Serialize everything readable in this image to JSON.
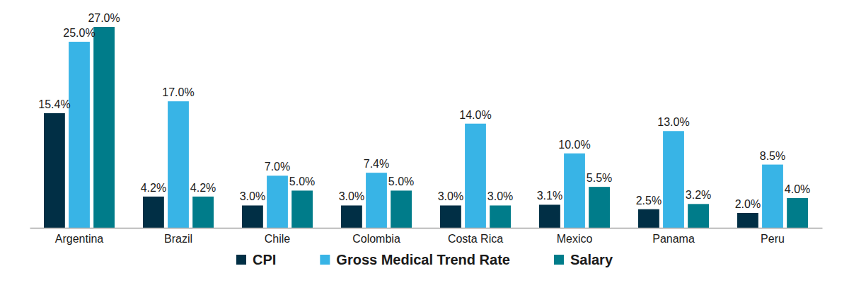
{
  "chart_data": {
    "type": "bar",
    "categories": [
      "Argentina",
      "Brazil",
      "Chile",
      "Colombia",
      "Costa Rica",
      "Mexico",
      "Panama",
      "Peru"
    ],
    "series": [
      {
        "name": "CPI",
        "color": "#012f45",
        "values": [
          15.4,
          4.2,
          3.0,
          3.0,
          3.0,
          3.1,
          2.5,
          2.0
        ],
        "value_labels": [
          "15.4%",
          "4.2%",
          "3.0%",
          "3.0%",
          "3.0%",
          "3.1%",
          "2.5%",
          "2.0%"
        ]
      },
      {
        "name": "Gross Medical Trend Rate",
        "color": "#38b4e6",
        "values": [
          25.0,
          17.0,
          7.0,
          7.4,
          14.0,
          10.0,
          13.0,
          8.5
        ],
        "value_labels": [
          "25.0%",
          "17.0%",
          "7.0%",
          "7.4%",
          "14.0%",
          "10.0%",
          "13.0%",
          "8.5%"
        ]
      },
      {
        "name": "Salary",
        "color": "#007c8a",
        "values": [
          27.0,
          4.2,
          5.0,
          5.0,
          3.0,
          5.5,
          3.2,
          4.0
        ],
        "value_labels": [
          "27.0%",
          "4.2%",
          "5.0%",
          "5.0%",
          "3.0%",
          "5.5%",
          "3.2%",
          "4.0%"
        ]
      }
    ],
    "ylim": [
      0,
      27
    ],
    "grid": false,
    "data_labels": true,
    "legend": "bottom",
    "tick_labels": "x"
  }
}
